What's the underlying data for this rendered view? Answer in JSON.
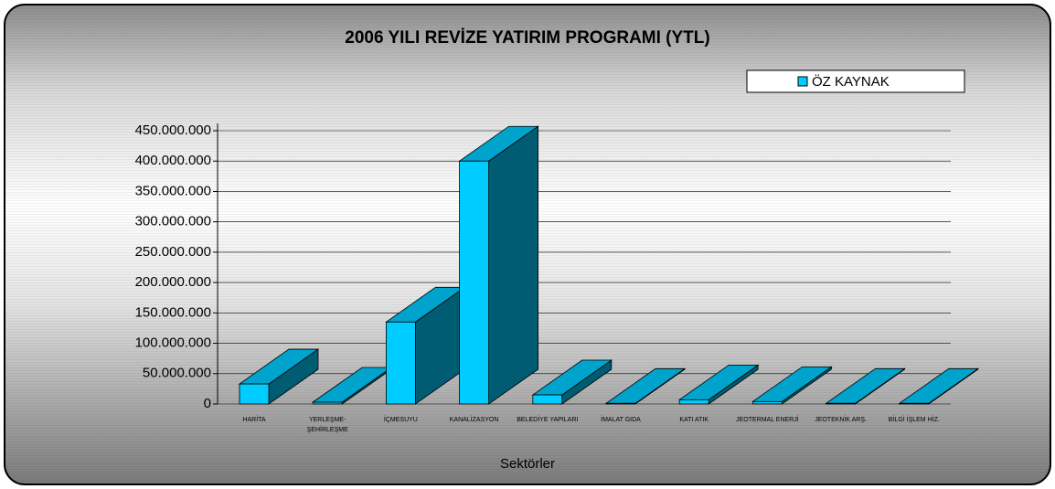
{
  "chart_data": {
    "type": "bar3d",
    "title": "2006 YILI REVİZE YATIRIM PROGRAMI (YTL)",
    "x_label": "Sektörler",
    "categories": [
      "HARİTA",
      "YERLEŞME- ŞEHİRLEŞME",
      "İÇMESUYU",
      "KANALİZASYON",
      "BELEDİYE YAPILARI",
      "İMALAT GIDA",
      "KATI ATIK",
      "JEOTERMAL ENERJİ",
      "JEOTEKNİK ARŞ.",
      "BİLGİ İŞLEM HİZ."
    ],
    "series": [
      {
        "name": "ÖZ KAYNAK",
        "color": "#00ccff",
        "values": [
          33000000,
          3000000,
          135000000,
          400000000,
          15000000,
          1000000,
          7000000,
          4000000,
          1000000,
          1000000
        ]
      }
    ],
    "ylim": [
      0,
      450000000
    ],
    "yticks": [
      0,
      {
        "value": 50000000,
        "label": "50.000.000"
      },
      {
        "value": 100000000,
        "label": "100.000.000"
      },
      {
        "value": 150000000,
        "label": "150.000.000"
      },
      {
        "value": 200000000,
        "label": "200.000.000"
      },
      {
        "value": 250000000,
        "label": "250.000.000"
      },
      {
        "value": 300000000,
        "label": "300.000.000"
      },
      {
        "value": 350000000,
        "label": "350.000.000"
      },
      {
        "value": 400000000,
        "label": "400.000.000"
      },
      {
        "value": 450000000,
        "label": "450.000.000"
      }
    ],
    "grid": true,
    "legend": "top-right"
  }
}
